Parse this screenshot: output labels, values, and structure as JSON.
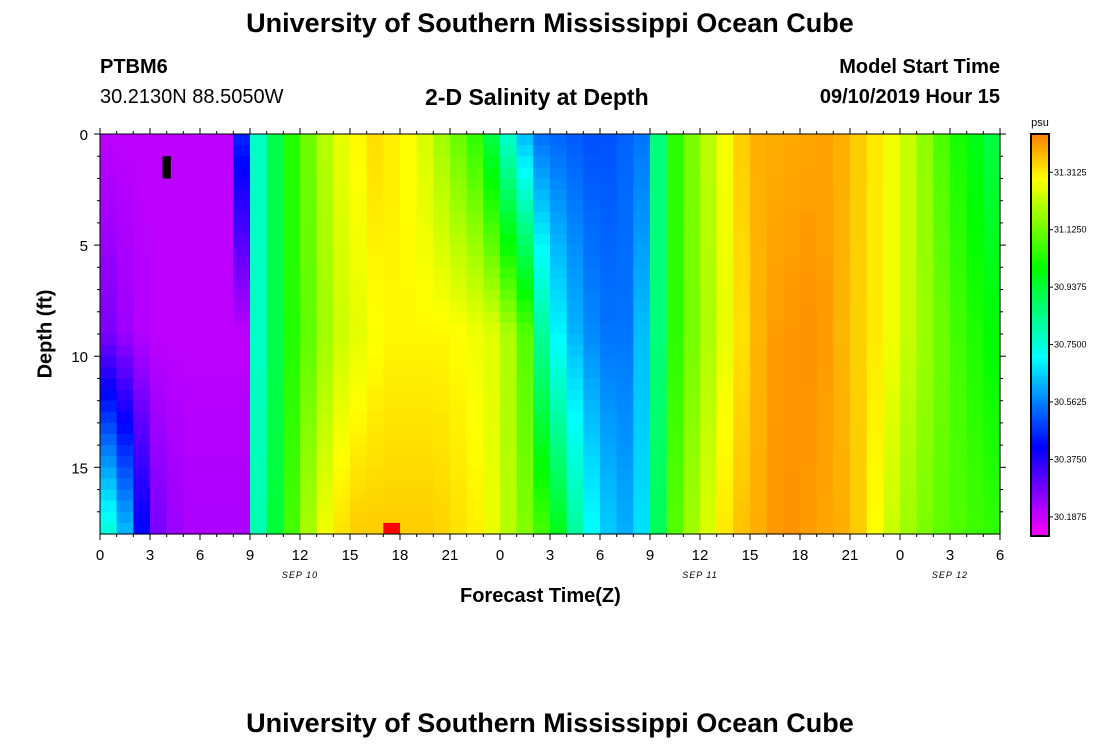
{
  "header": {
    "title": "University of Southern Mississippi Ocean Cube",
    "station_id": "PTBM6",
    "station_coords": "30.2130N 88.5050W",
    "subtitle": "2-D Salinity at Depth",
    "model_start_label": "Model Start Time",
    "model_start_value": "09/10/2019 Hour 15"
  },
  "footer": {
    "title": "University of Southern Mississippi Ocean Cube"
  },
  "chart_data": {
    "type": "heatmap",
    "title": "2-D Salinity at Depth",
    "xlabel": "Forecast Time(Z)",
    "ylabel": "Depth (ft)",
    "x_tick_labels": [
      "0",
      "3",
      "6",
      "9",
      "12",
      "15",
      "18",
      "21",
      "0",
      "3",
      "6",
      "9",
      "12",
      "15",
      "18",
      "21",
      "0",
      "3",
      "6"
    ],
    "x_range_hours": [
      0,
      54
    ],
    "date_labels": [
      {
        "label": "SEP 10",
        "hour": 12
      },
      {
        "label": "SEP 11",
        "hour": 36
      },
      {
        "label": "SEP 12",
        "hour": 51
      }
    ],
    "y_tick_labels": [
      "0",
      "5",
      "10",
      "15"
    ],
    "y_ticks": [
      0,
      5,
      10,
      15
    ],
    "ylim": [
      0,
      18
    ],
    "y_inverted": true,
    "colorbar": {
      "unit": "psu",
      "min": 30.125,
      "max": 31.4375,
      "tick_values": [
        30.1875,
        30.375,
        30.5625,
        30.75,
        30.9375,
        31.125,
        31.3125
      ],
      "tick_labels": [
        "30.1875",
        "30.3750",
        "30.5625",
        "30.7500",
        "30.9375",
        "31.1250",
        "31.3125"
      ]
    },
    "depth_profiles": [
      {
        "depth": 0,
        "points": [
          [
            0,
            30.2
          ],
          [
            8,
            30.2
          ],
          [
            9,
            30.72
          ],
          [
            10,
            30.83
          ],
          [
            11,
            31.0
          ],
          [
            14,
            31.25
          ],
          [
            16.5,
            31.33
          ],
          [
            19,
            31.28
          ],
          [
            23,
            31.02
          ],
          [
            24,
            30.82
          ],
          [
            25,
            30.7
          ],
          [
            26,
            30.55
          ],
          [
            30,
            30.5
          ],
          [
            32.5,
            30.55
          ],
          [
            33,
            30.72
          ],
          [
            34,
            31.0
          ],
          [
            35,
            31.1
          ],
          [
            37,
            31.25
          ],
          [
            39,
            31.38
          ],
          [
            44,
            31.4
          ],
          [
            47,
            31.3
          ],
          [
            49,
            31.2
          ],
          [
            51,
            31.05
          ],
          [
            53,
            30.95
          ],
          [
            54,
            30.9
          ]
        ]
      },
      {
        "depth": 9,
        "points": [
          [
            0,
            30.3
          ],
          [
            1,
            30.25
          ],
          [
            3,
            30.2
          ],
          [
            8.5,
            30.2
          ],
          [
            9,
            30.72
          ],
          [
            10,
            30.83
          ],
          [
            11,
            31.0
          ],
          [
            14,
            31.22
          ],
          [
            17,
            31.3
          ],
          [
            21,
            31.3
          ],
          [
            24,
            31.25
          ],
          [
            25.5,
            31.1
          ],
          [
            26,
            30.9
          ],
          [
            27,
            30.75
          ],
          [
            28,
            30.65
          ],
          [
            30,
            30.55
          ],
          [
            32,
            30.55
          ],
          [
            33,
            30.72
          ],
          [
            34,
            31.0
          ],
          [
            35,
            31.1
          ],
          [
            38,
            31.3
          ],
          [
            40,
            31.4
          ],
          [
            43,
            31.42
          ],
          [
            47,
            31.3
          ],
          [
            50,
            31.15
          ],
          [
            52,
            31.05
          ],
          [
            54,
            30.98
          ]
        ]
      },
      {
        "depth": 18,
        "points": [
          [
            0,
            30.8
          ],
          [
            1,
            30.72
          ],
          [
            2,
            30.55
          ],
          [
            3,
            30.3
          ],
          [
            5,
            30.22
          ],
          [
            8.5,
            30.22
          ],
          [
            9,
            30.75
          ],
          [
            10,
            30.85
          ],
          [
            11,
            31.02
          ],
          [
            13,
            31.25
          ],
          [
            15,
            31.35
          ],
          [
            20,
            31.35
          ],
          [
            23,
            31.3
          ],
          [
            25,
            31.18
          ],
          [
            27,
            31.05
          ],
          [
            28,
            30.9
          ],
          [
            29,
            30.75
          ],
          [
            30.5,
            30.65
          ],
          [
            32,
            30.6
          ],
          [
            33,
            30.75
          ],
          [
            34,
            31.05
          ],
          [
            35,
            31.15
          ],
          [
            38,
            31.35
          ],
          [
            41,
            31.42
          ],
          [
            45,
            31.38
          ],
          [
            48,
            31.2
          ],
          [
            50,
            31.12
          ],
          [
            52,
            31.08
          ],
          [
            54,
            31.05
          ]
        ]
      }
    ],
    "markers": [
      {
        "kind": "black-cell",
        "hour": 4,
        "depth_range": [
          1,
          2
        ]
      },
      {
        "kind": "red-cell",
        "hour": 17.5,
        "depth_range": [
          17.5,
          18
        ]
      }
    ]
  }
}
